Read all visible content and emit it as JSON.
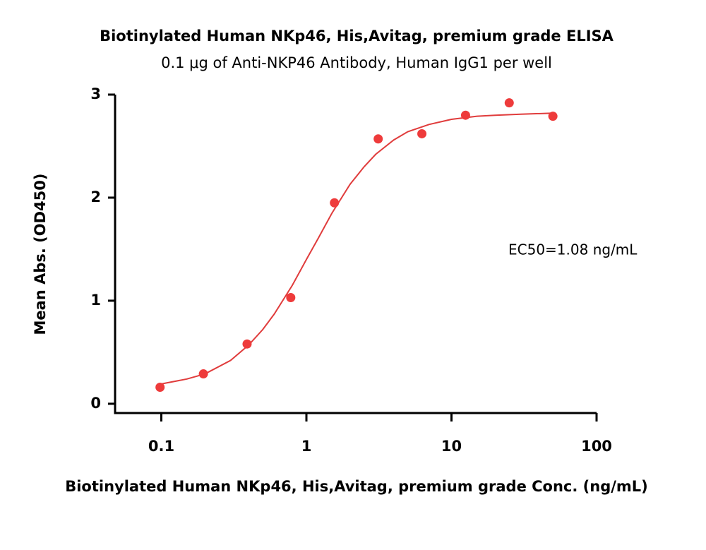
{
  "chart_data": {
    "type": "scatter",
    "title": "Biotinylated Human NKp46, His,Avitag, premium grade ELISA",
    "subtitle": "0.1 μg of Anti-NKP46 Antibody, Human IgG1 per well",
    "x_label": "Biotinylated Human NKp46, His,Avitag, premium grade Conc. (ng/mL)",
    "y_label": "Mean Abs. (OD450)",
    "annotation": "EC50=1.08 ng/mL",
    "x_scale": "log",
    "xlim": [
      0.048,
      100
    ],
    "ylim": [
      -0.09,
      3
    ],
    "xticks": [
      0.1,
      1,
      10,
      100
    ],
    "yticks": [
      0,
      1,
      2,
      3
    ],
    "grid": false,
    "series": [
      {
        "mode": "markers",
        "color": "#ee3b3b",
        "x": [
          0.098,
          0.195,
          0.39,
          0.78,
          1.56,
          3.125,
          6.25,
          12.5,
          25,
          50
        ],
        "values": [
          0.16,
          0.29,
          0.58,
          1.03,
          1.95,
          2.57,
          2.62,
          2.8,
          2.92,
          2.79
        ]
      },
      {
        "mode": "line",
        "color": "#e03c3c",
        "x": [
          0.098,
          0.15,
          0.2,
          0.3,
          0.4,
          0.5,
          0.6,
          0.8,
          1,
          1.2,
          1.5,
          2,
          2.5,
          3,
          4,
          5,
          7,
          10,
          15,
          20,
          30,
          50
        ],
        "values": [
          0.19,
          0.24,
          0.29,
          0.42,
          0.57,
          0.72,
          0.87,
          1.15,
          1.4,
          1.6,
          1.85,
          2.13,
          2.3,
          2.42,
          2.56,
          2.64,
          2.71,
          2.76,
          2.79,
          2.8,
          2.81,
          2.82
        ]
      }
    ]
  }
}
